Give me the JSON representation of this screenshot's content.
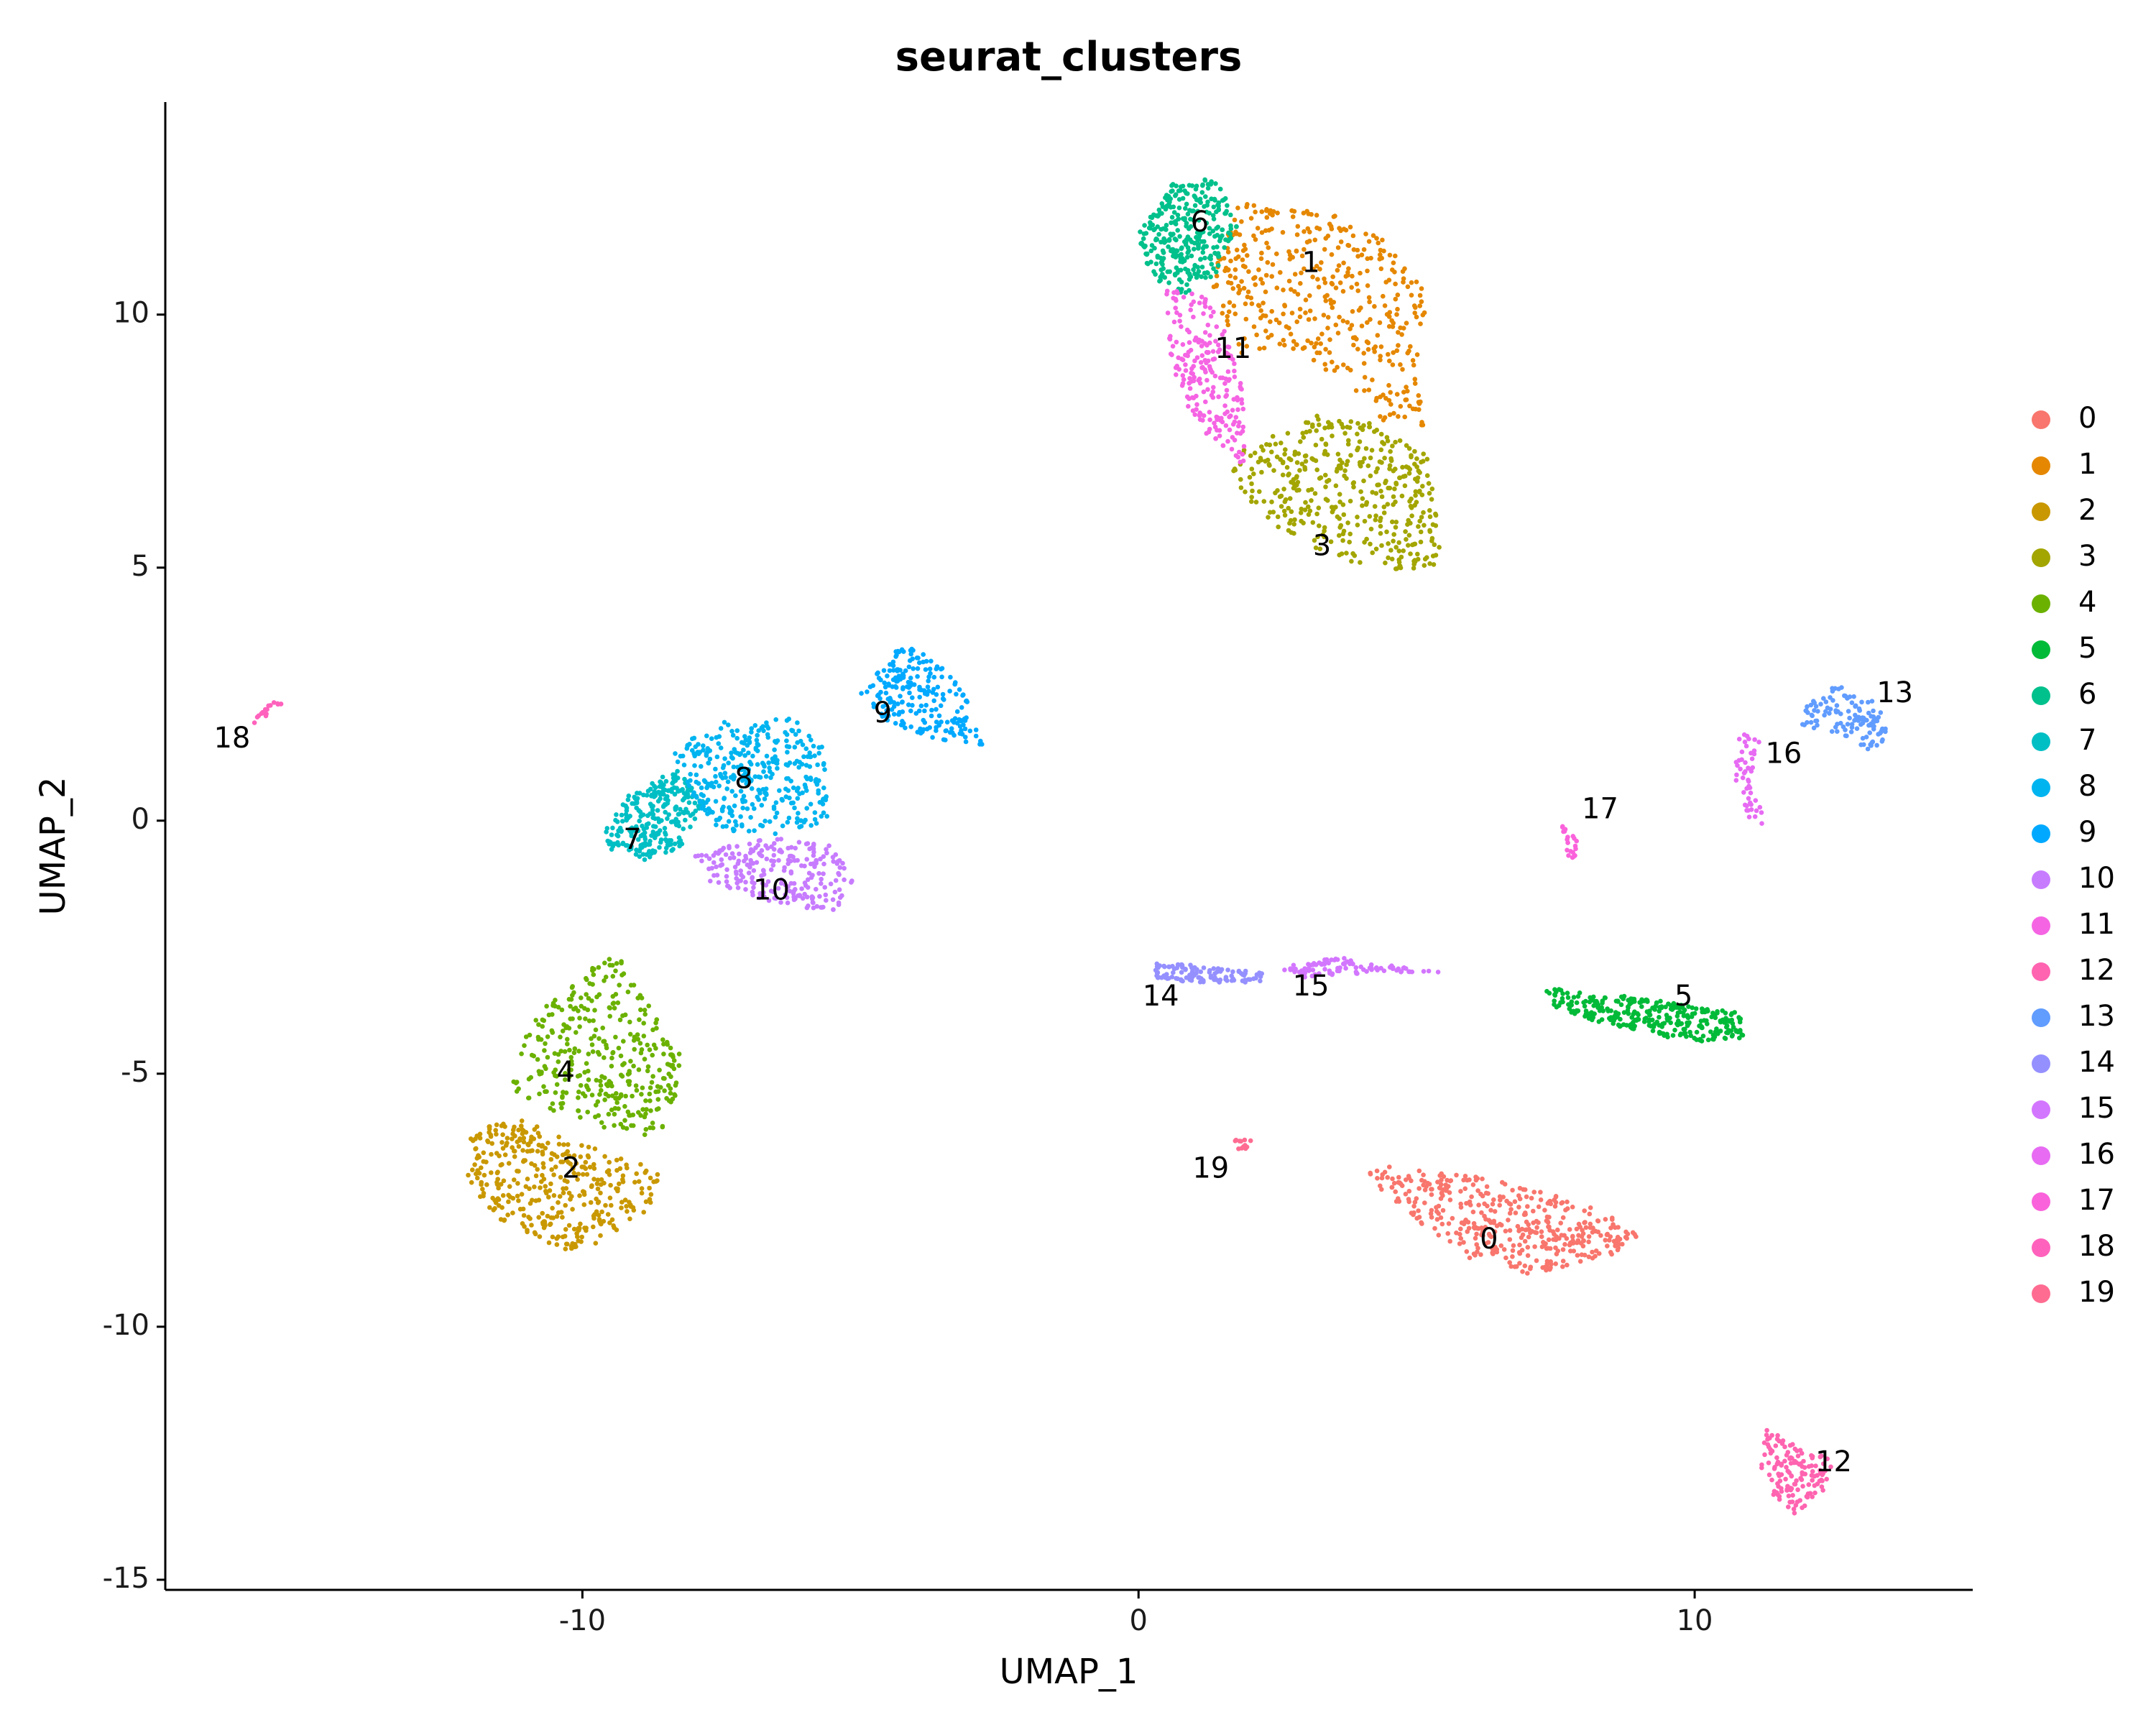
{
  "chart_data": {
    "type": "scatter",
    "title": "seurat_clusters",
    "xlabel": "UMAP_1",
    "ylabel": "UMAP_2",
    "xlim": [
      -17.5,
      15
    ],
    "ylim": [
      -15.2,
      14.2
    ],
    "x_ticks": [
      -10,
      0,
      10
    ],
    "x_tick_labels": [
      "-10",
      "0",
      "10"
    ],
    "y_ticks": [
      -15,
      -10,
      -5,
      0,
      5,
      10
    ],
    "y_tick_labels": [
      "-15",
      "-10",
      "-5",
      "0",
      "5",
      "10"
    ],
    "grid": false,
    "legend_position": "right",
    "series": [
      {
        "name": "0",
        "color": "#F8766D",
        "label_pos": [
          6.3,
          -8.3
        ],
        "shape": [
          [
            4.5,
            -6.8
          ],
          [
            6.5,
            -7.1
          ],
          [
            8.5,
            -7.7
          ],
          [
            9.0,
            -8.2
          ],
          [
            8.5,
            -8.6
          ],
          [
            7.0,
            -9.0
          ],
          [
            6.0,
            -8.7
          ],
          [
            5.0,
            -7.9
          ],
          [
            4.0,
            -7.0
          ]
        ],
        "n": 420
      },
      {
        "name": "1",
        "color": "#E58700",
        "label_pos": [
          3.1,
          11.0
        ],
        "shape": [
          [
            1.8,
            12.2
          ],
          [
            3.5,
            12.0
          ],
          [
            4.8,
            11.3
          ],
          [
            5.2,
            10.3
          ],
          [
            5.0,
            8.8
          ],
          [
            5.2,
            7.8
          ],
          [
            4.5,
            7.8
          ],
          [
            3.8,
            8.6
          ],
          [
            2.6,
            9.4
          ],
          [
            1.8,
            9.2
          ],
          [
            1.3,
            10.6
          ],
          [
            1.5,
            11.5
          ]
        ],
        "n": 420
      },
      {
        "name": "2",
        "color": "#C99800",
        "label_pos": [
          -10.2,
          -6.9
        ],
        "shape": [
          [
            -12.0,
            -6.1
          ],
          [
            -11.0,
            -5.9
          ],
          [
            -10.0,
            -6.4
          ],
          [
            -8.6,
            -6.9
          ],
          [
            -8.8,
            -7.7
          ],
          [
            -9.8,
            -8.4
          ],
          [
            -10.5,
            -8.5
          ],
          [
            -11.6,
            -7.8
          ],
          [
            -12.1,
            -7.1
          ]
        ],
        "n": 380
      },
      {
        "name": "3",
        "color": "#A3A500",
        "label_pos": [
          3.3,
          5.4
        ],
        "shape": [
          [
            1.8,
            7.3
          ],
          [
            3.2,
            8.0
          ],
          [
            4.5,
            7.8
          ],
          [
            5.2,
            7.2
          ],
          [
            5.5,
            5.1
          ],
          [
            4.5,
            4.9
          ],
          [
            3.0,
            5.4
          ],
          [
            2.0,
            6.2
          ],
          [
            1.7,
            6.9
          ]
        ],
        "n": 420
      },
      {
        "name": "4",
        "color": "#6BB100",
        "label_pos": [
          -10.3,
          -5.0
        ],
        "shape": [
          [
            -10.6,
            -3.5
          ],
          [
            -9.4,
            -2.6
          ],
          [
            -8.7,
            -3.8
          ],
          [
            -8.2,
            -4.6
          ],
          [
            -8.4,
            -6.0
          ],
          [
            -9.0,
            -6.3
          ],
          [
            -10.4,
            -5.8
          ],
          [
            -11.3,
            -5.3
          ],
          [
            -11.0,
            -4.2
          ]
        ],
        "n": 360
      },
      {
        "name": "5",
        "color": "#00BA38",
        "label_pos": [
          9.8,
          -3.5
        ],
        "shape": [
          [
            7.3,
            -3.3
          ],
          [
            9.0,
            -3.5
          ],
          [
            10.8,
            -3.8
          ],
          [
            10.9,
            -4.3
          ],
          [
            10.0,
            -4.4
          ],
          [
            8.3,
            -4.0
          ],
          [
            7.5,
            -3.7
          ]
        ],
        "n": 320
      },
      {
        "name": "6",
        "color": "#00C08B",
        "label_pos": [
          1.1,
          11.8
        ],
        "shape": [
          [
            0.0,
            11.6
          ],
          [
            0.6,
            12.6
          ],
          [
            1.4,
            12.7
          ],
          [
            1.8,
            11.8
          ],
          [
            1.4,
            10.8
          ],
          [
            0.8,
            10.4
          ],
          [
            0.1,
            10.8
          ]
        ],
        "n": 320
      },
      {
        "name": "7",
        "color": "#00BFC4",
        "label_pos": [
          -9.1,
          -0.4
        ],
        "shape": [
          [
            -9.6,
            -0.2
          ],
          [
            -9.1,
            0.6
          ],
          [
            -8.3,
            1.0
          ],
          [
            -7.8,
            0.4
          ],
          [
            -8.2,
            -0.5
          ],
          [
            -8.8,
            -0.8
          ],
          [
            -9.5,
            -0.6
          ]
        ],
        "n": 260
      },
      {
        "name": "8",
        "color": "#00B4F0",
        "label_pos": [
          -7.1,
          0.8
        ],
        "shape": [
          [
            -8.4,
            1.4
          ],
          [
            -7.5,
            2.0
          ],
          [
            -6.3,
            2.1
          ],
          [
            -5.6,
            1.4
          ],
          [
            -5.6,
            0.0
          ],
          [
            -6.5,
            -0.3
          ],
          [
            -7.5,
            -0.2
          ],
          [
            -8.1,
            0.4
          ]
        ],
        "n": 360
      },
      {
        "name": "9",
        "color": "#00A9FF",
        "label_pos": [
          -4.6,
          2.1
        ],
        "shape": [
          [
            -5.0,
            2.5
          ],
          [
            -4.3,
            3.5
          ],
          [
            -3.6,
            3.2
          ],
          [
            -3.0,
            2.3
          ],
          [
            -2.8,
            1.5
          ],
          [
            -3.6,
            1.6
          ],
          [
            -4.5,
            1.9
          ]
        ],
        "n": 220
      },
      {
        "name": "10",
        "color": "#C77CFF",
        "label_pos": [
          -6.6,
          -1.4
        ],
        "shape": [
          [
            -8.0,
            -0.7
          ],
          [
            -6.8,
            -0.3
          ],
          [
            -5.5,
            -0.5
          ],
          [
            -5.0,
            -1.2
          ],
          [
            -5.5,
            -1.8
          ],
          [
            -6.7,
            -1.6
          ],
          [
            -7.7,
            -1.2
          ]
        ],
        "n": 240
      },
      {
        "name": "11",
        "color": "#F564E3",
        "label_pos": [
          1.7,
          9.3
        ],
        "shape": [
          [
            0.5,
            10.5
          ],
          [
            1.2,
            10.4
          ],
          [
            1.6,
            9.6
          ],
          [
            1.9,
            8.4
          ],
          [
            1.9,
            7.0
          ],
          [
            1.4,
            7.4
          ],
          [
            0.8,
            8.2
          ],
          [
            0.5,
            9.4
          ]
        ],
        "n": 220
      },
      {
        "name": "12",
        "color": "#FF64B0",
        "label_pos": [
          12.5,
          -12.7
        ],
        "shape": [
          [
            11.3,
            -12.0
          ],
          [
            11.9,
            -12.4
          ],
          [
            12.5,
            -12.6
          ],
          [
            12.4,
            -13.2
          ],
          [
            11.8,
            -13.7
          ],
          [
            11.4,
            -13.3
          ],
          [
            11.1,
            -12.6
          ]
        ],
        "n": 140
      },
      {
        "name": "13",
        "color": "#619CFF",
        "label_pos": [
          13.6,
          2.5
        ],
        "shape": [
          [
            12.0,
            2.3
          ],
          [
            12.6,
            2.7
          ],
          [
            13.3,
            2.3
          ],
          [
            13.5,
            1.6
          ],
          [
            13.1,
            1.4
          ],
          [
            12.4,
            1.8
          ],
          [
            11.8,
            1.8
          ]
        ],
        "n": 120
      },
      {
        "name": "14",
        "color": "#9590FF",
        "label_pos": [
          0.4,
          -3.5
        ],
        "shape": [
          [
            0.3,
            -2.8
          ],
          [
            1.5,
            -2.9
          ],
          [
            2.3,
            -3.0
          ],
          [
            2.2,
            -3.2
          ],
          [
            1.0,
            -3.2
          ],
          [
            0.3,
            -3.1
          ]
        ],
        "n": 110
      },
      {
        "name": "15",
        "color": "#D376FF",
        "label_pos": [
          3.1,
          -3.3
        ],
        "shape": [
          [
            2.5,
            -2.9
          ],
          [
            3.6,
            -2.7
          ],
          [
            4.2,
            -2.8
          ],
          [
            5.5,
            -3.0
          ],
          [
            4.2,
            -3.0
          ],
          [
            3.0,
            -3.1
          ]
        ],
        "n": 100
      },
      {
        "name": "16",
        "color": "#E76BF3",
        "label_pos": [
          11.6,
          1.3
        ],
        "shape": [
          [
            10.8,
            1.7
          ],
          [
            11.2,
            1.7
          ],
          [
            11.0,
            0.8
          ],
          [
            11.3,
            -0.1
          ],
          [
            11.0,
            0.0
          ],
          [
            10.7,
            0.9
          ]
        ],
        "n": 50
      },
      {
        "name": "17",
        "color": "#FA62DB",
        "label_pos": [
          8.3,
          0.2
        ],
        "shape": [
          [
            7.6,
            -0.1
          ],
          [
            7.9,
            -0.2
          ],
          [
            7.9,
            -0.8
          ],
          [
            7.7,
            -0.7
          ]
        ],
        "n": 20
      },
      {
        "name": "18",
        "color": "#FF62BC",
        "label_pos": [
          -16.3,
          1.6
        ],
        "shape": [
          [
            -16.0,
            2.0
          ],
          [
            -15.5,
            2.4
          ],
          [
            -15.4,
            2.3
          ],
          [
            -15.9,
            1.9
          ]
        ],
        "n": 18
      },
      {
        "name": "19",
        "color": "#FF6C91",
        "label_pos": [
          1.3,
          -6.9
        ],
        "shape": [
          [
            1.7,
            -6.3
          ],
          [
            2.0,
            -6.3
          ],
          [
            2.2,
            -6.5
          ],
          [
            1.8,
            -6.5
          ]
        ],
        "n": 12
      }
    ],
    "legend": [
      "0",
      "1",
      "2",
      "3",
      "4",
      "5",
      "6",
      "7",
      "8",
      "9",
      "10",
      "11",
      "12",
      "13",
      "14",
      "15",
      "16",
      "17",
      "18",
      "19"
    ]
  }
}
